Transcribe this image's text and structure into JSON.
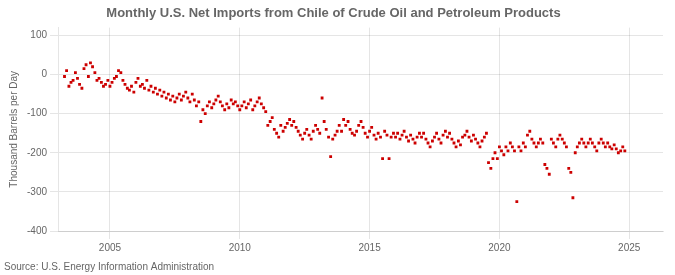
{
  "chart_data": {
    "type": "scatter",
    "title": "Monthly U.S. Net Imports from Chile of Crude Oil and Petroleum Products",
    "ylabel": "Thousand Barrels per Day",
    "annotations": [
      "Source: U.S. Energy Information Administration"
    ],
    "color": "#cc0000",
    "marker": "square",
    "grid": true,
    "xlim": [
      2003.0,
      2026.3
    ],
    "ylim": [
      -400,
      120
    ],
    "xticks": [
      2005,
      2010,
      2015,
      2020,
      2025
    ],
    "yticks": [
      -400,
      -300,
      -200,
      -100,
      0,
      100
    ],
    "x": [
      2003.25,
      2003.33,
      2003.42,
      2003.5,
      2003.58,
      2003.67,
      2003.75,
      2003.83,
      2003.92,
      2004.0,
      2004.08,
      2004.17,
      2004.25,
      2004.33,
      2004.42,
      2004.5,
      2004.58,
      2004.67,
      2004.75,
      2004.83,
      2004.92,
      2005.0,
      2005.08,
      2005.17,
      2005.25,
      2005.33,
      2005.42,
      2005.5,
      2005.58,
      2005.67,
      2005.75,
      2005.83,
      2005.92,
      2006.0,
      2006.08,
      2006.17,
      2006.25,
      2006.33,
      2006.42,
      2006.5,
      2006.58,
      2006.67,
      2006.75,
      2006.83,
      2006.92,
      2007.0,
      2007.08,
      2007.17,
      2007.25,
      2007.33,
      2007.42,
      2007.5,
      2007.58,
      2007.67,
      2007.75,
      2007.83,
      2007.92,
      2008.0,
      2008.08,
      2008.17,
      2008.25,
      2008.33,
      2008.42,
      2008.5,
      2008.58,
      2008.67,
      2008.75,
      2008.83,
      2008.92,
      2009.0,
      2009.08,
      2009.17,
      2009.25,
      2009.33,
      2009.42,
      2009.5,
      2009.58,
      2009.67,
      2009.75,
      2009.83,
      2009.92,
      2010.0,
      2010.08,
      2010.17,
      2010.25,
      2010.33,
      2010.42,
      2010.5,
      2010.58,
      2010.67,
      2010.75,
      2010.83,
      2010.92,
      2011.0,
      2011.08,
      2011.17,
      2011.25,
      2011.33,
      2011.42,
      2011.5,
      2011.58,
      2011.67,
      2011.75,
      2011.83,
      2011.92,
      2012.0,
      2012.08,
      2012.17,
      2012.25,
      2012.33,
      2012.42,
      2012.5,
      2012.58,
      2012.67,
      2012.75,
      2012.83,
      2012.92,
      2013.0,
      2013.08,
      2013.17,
      2013.25,
      2013.33,
      2013.42,
      2013.5,
      2013.58,
      2013.67,
      2013.75,
      2013.83,
      2013.92,
      2014.0,
      2014.08,
      2014.17,
      2014.25,
      2014.33,
      2014.42,
      2014.5,
      2014.58,
      2014.67,
      2014.75,
      2014.83,
      2014.92,
      2015.0,
      2015.08,
      2015.17,
      2015.25,
      2015.33,
      2015.42,
      2015.5,
      2015.58,
      2015.67,
      2015.75,
      2015.83,
      2015.92,
      2016.0,
      2016.08,
      2016.17,
      2016.25,
      2016.33,
      2016.42,
      2016.5,
      2016.58,
      2016.67,
      2016.75,
      2016.83,
      2016.92,
      2017.0,
      2017.08,
      2017.17,
      2017.25,
      2017.33,
      2017.42,
      2017.5,
      2017.58,
      2017.67,
      2017.75,
      2017.83,
      2017.92,
      2018.0,
      2018.08,
      2018.17,
      2018.25,
      2018.33,
      2018.42,
      2018.5,
      2018.58,
      2018.67,
      2018.75,
      2018.83,
      2018.92,
      2019.0,
      2019.08,
      2019.17,
      2019.25,
      2019.33,
      2019.42,
      2019.5,
      2019.58,
      2019.67,
      2019.75,
      2019.83,
      2019.92,
      2020.0,
      2020.08,
      2020.17,
      2020.25,
      2020.33,
      2020.42,
      2020.5,
      2020.58,
      2020.67,
      2020.75,
      2020.83,
      2020.92,
      2021.0,
      2021.08,
      2021.17,
      2021.25,
      2021.33,
      2021.42,
      2021.5,
      2021.58,
      2021.67,
      2021.75,
      2021.83,
      2021.92,
      2022.0,
      2022.08,
      2022.17,
      2022.25,
      2022.33,
      2022.42,
      2022.5,
      2022.58,
      2022.67,
      2022.75,
      2022.83,
      2022.92,
      2023.0,
      2023.08,
      2023.17,
      2023.25,
      2023.33,
      2023.42,
      2023.5,
      2023.58,
      2023.67,
      2023.75,
      2023.83,
      2023.92,
      2024.0,
      2024.08,
      2024.17,
      2024.25,
      2024.33,
      2024.42,
      2024.5,
      2024.58,
      2024.67,
      2024.75,
      2024.83
    ],
    "values": [
      -5,
      10,
      -30,
      -20,
      -15,
      5,
      -10,
      -25,
      -35,
      15,
      25,
      -5,
      30,
      20,
      5,
      -15,
      -10,
      -20,
      -30,
      -25,
      -15,
      -30,
      -20,
      -10,
      -5,
      10,
      5,
      -15,
      -25,
      -35,
      -40,
      -30,
      -45,
      -20,
      -10,
      -30,
      -25,
      -35,
      -15,
      -40,
      -30,
      -45,
      -35,
      -50,
      -40,
      -55,
      -45,
      -60,
      -50,
      -65,
      -55,
      -70,
      -60,
      -50,
      -65,
      -55,
      -45,
      -60,
      -70,
      -50,
      -65,
      -80,
      -70,
      -120,
      -90,
      -100,
      -80,
      -70,
      -85,
      -75,
      -65,
      -55,
      -70,
      -80,
      -90,
      -75,
      -85,
      -65,
      -75,
      -70,
      -80,
      -90,
      -80,
      -70,
      -85,
      -75,
      -65,
      -90,
      -80,
      -70,
      -60,
      -75,
      -85,
      -95,
      -130,
      -120,
      -110,
      -140,
      -150,
      -160,
      -130,
      -145,
      -135,
      -125,
      -115,
      -130,
      -120,
      -135,
      -145,
      -155,
      -165,
      -150,
      -140,
      -155,
      -165,
      -145,
      -130,
      -140,
      -150,
      -60,
      -120,
      -140,
      -160,
      -210,
      -165,
      -155,
      -145,
      -130,
      -145,
      -115,
      -130,
      -120,
      -140,
      -150,
      -155,
      -145,
      -130,
      -120,
      -135,
      -150,
      -160,
      -145,
      -135,
      -155,
      -165,
      -150,
      -160,
      -215,
      -145,
      -155,
      -215,
      -160,
      -150,
      -160,
      -150,
      -165,
      -155,
      -145,
      -160,
      -170,
      -155,
      -165,
      -175,
      -160,
      -150,
      -160,
      -150,
      -165,
      -175,
      -185,
      -170,
      -160,
      -150,
      -165,
      -175,
      -155,
      -145,
      -160,
      -150,
      -165,
      -175,
      -185,
      -170,
      -180,
      -160,
      -155,
      -145,
      -160,
      -170,
      -155,
      -165,
      -175,
      -185,
      -170,
      -160,
      -150,
      -225,
      -240,
      -215,
      -200,
      -215,
      -185,
      -195,
      -205,
      -185,
      -195,
      -175,
      -185,
      -195,
      -325,
      -185,
      -195,
      -175,
      -185,
      -155,
      -145,
      -165,
      -175,
      -185,
      -175,
      -165,
      -175,
      -230,
      -240,
      -255,
      -165,
      -175,
      -185,
      -165,
      -155,
      -165,
      -175,
      -185,
      -240,
      -250,
      -315,
      -200,
      -185,
      -175,
      -165,
      -175,
      -185,
      -175,
      -165,
      -175,
      -185,
      -195,
      -175,
      -165,
      -175,
      -185,
      -175,
      -185,
      -190,
      -180,
      -190,
      -200,
      -195,
      -185,
      -195
    ]
  }
}
